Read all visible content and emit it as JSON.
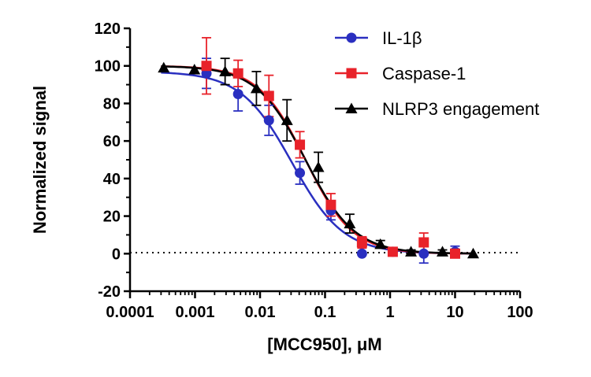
{
  "chart_data": {
    "type": "scatter",
    "title": "",
    "xlabel": "[MCC950], μM",
    "ylabel": "Normalized signal",
    "x_scale": "log",
    "xlim": [
      0.0001,
      100
    ],
    "ylim": [
      -20,
      120
    ],
    "x_ticks": [
      "0.0001",
      "0.001",
      "0.01",
      "0.1",
      "1",
      "10",
      "100"
    ],
    "y_ticks": [
      "-20",
      "0",
      "20",
      "40",
      "60",
      "80",
      "100",
      "120"
    ],
    "reference_line": {
      "y": 0,
      "style": "dotted"
    },
    "legend_position": "top-right",
    "grid": false,
    "series": [
      {
        "name": "IL-1β",
        "color": "#2a2fc0",
        "marker": "circle",
        "x": [
          0.0015,
          0.0046,
          0.0137,
          0.041,
          0.123,
          0.37,
          1.1,
          3.3,
          10
        ],
        "y": [
          96,
          85,
          71,
          43,
          23,
          0,
          1,
          0,
          1
        ],
        "err": [
          8,
          9,
          8,
          6,
          5,
          0,
          1,
          5,
          3
        ],
        "fit": {
          "top": 97,
          "bottom": 0,
          "ic50": 0.031,
          "hill": 1.1
        }
      },
      {
        "name": "Caspase-1",
        "color": "#e8222a",
        "marker": "square",
        "x": [
          0.0015,
          0.0046,
          0.0137,
          0.041,
          0.123,
          0.37,
          1.1,
          3.3,
          10
        ],
        "y": [
          100,
          96,
          84,
          58,
          26,
          6,
          1,
          6,
          0
        ],
        "err": [
          15,
          7,
          11,
          7,
          6,
          3,
          1,
          5,
          2
        ],
        "fit": {
          "top": 100,
          "bottom": 0,
          "ic50": 0.05,
          "hill": 1.2
        }
      },
      {
        "name": "NLRP3 engagement",
        "color": "#000000",
        "marker": "triangle",
        "x": [
          0.00033,
          0.00098,
          0.0029,
          0.0088,
          0.026,
          0.079,
          0.24,
          0.71,
          2.1,
          6.4,
          19
        ],
        "y": [
          99,
          98,
          97,
          88,
          71,
          46,
          16,
          5,
          1,
          1,
          0
        ],
        "err": [
          0,
          0,
          7,
          9,
          11,
          8,
          5,
          2,
          1,
          1,
          0
        ],
        "fit": {
          "top": 100,
          "bottom": 0,
          "ic50": 0.05,
          "hill": 1.15
        }
      }
    ]
  }
}
